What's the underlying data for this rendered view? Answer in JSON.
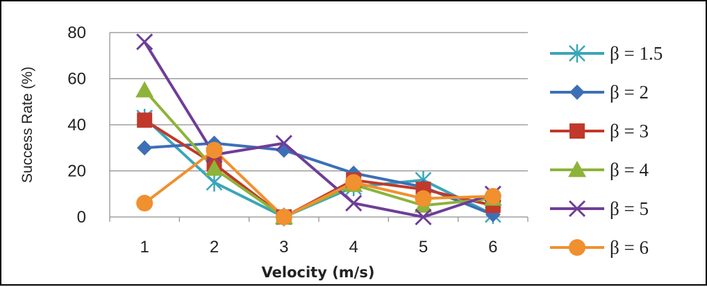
{
  "chart_data": {
    "type": "line",
    "xlabel": "Velocity (m/s)",
    "ylabel": "Success Rate (%)",
    "x": [
      1,
      2,
      3,
      4,
      5,
      6
    ],
    "xticks": [
      "1",
      "2",
      "3",
      "4",
      "5",
      "6"
    ],
    "ylim": [
      0,
      80
    ],
    "yticks": [
      "0",
      "20",
      "40",
      "60",
      "80"
    ],
    "grid": "horizontal",
    "legend": "right",
    "series": [
      {
        "name": "β = 1.5",
        "values": [
          43,
          15,
          0,
          13,
          16,
          1
        ],
        "color": "#3aa6b9",
        "marker": "asterisk"
      },
      {
        "name": "β = 2",
        "values": [
          30,
          32,
          29,
          19,
          13,
          1
        ],
        "color": "#3d6fb6",
        "marker": "diamond"
      },
      {
        "name": "β = 3",
        "values": [
          42,
          23,
          0,
          16,
          12,
          5
        ],
        "color": "#c0392b",
        "marker": "square"
      },
      {
        "name": "β = 4",
        "values": [
          55,
          21,
          0,
          14,
          5,
          8
        ],
        "color": "#8db33a",
        "marker": "triangle"
      },
      {
        "name": "β = 5",
        "values": [
          76,
          27,
          32,
          6,
          0,
          10
        ],
        "color": "#6f3d97",
        "marker": "x"
      },
      {
        "name": "β = 6",
        "values": [
          6,
          29,
          0,
          15,
          8,
          9
        ],
        "color": "#f0902f",
        "marker": "circle"
      }
    ]
  }
}
